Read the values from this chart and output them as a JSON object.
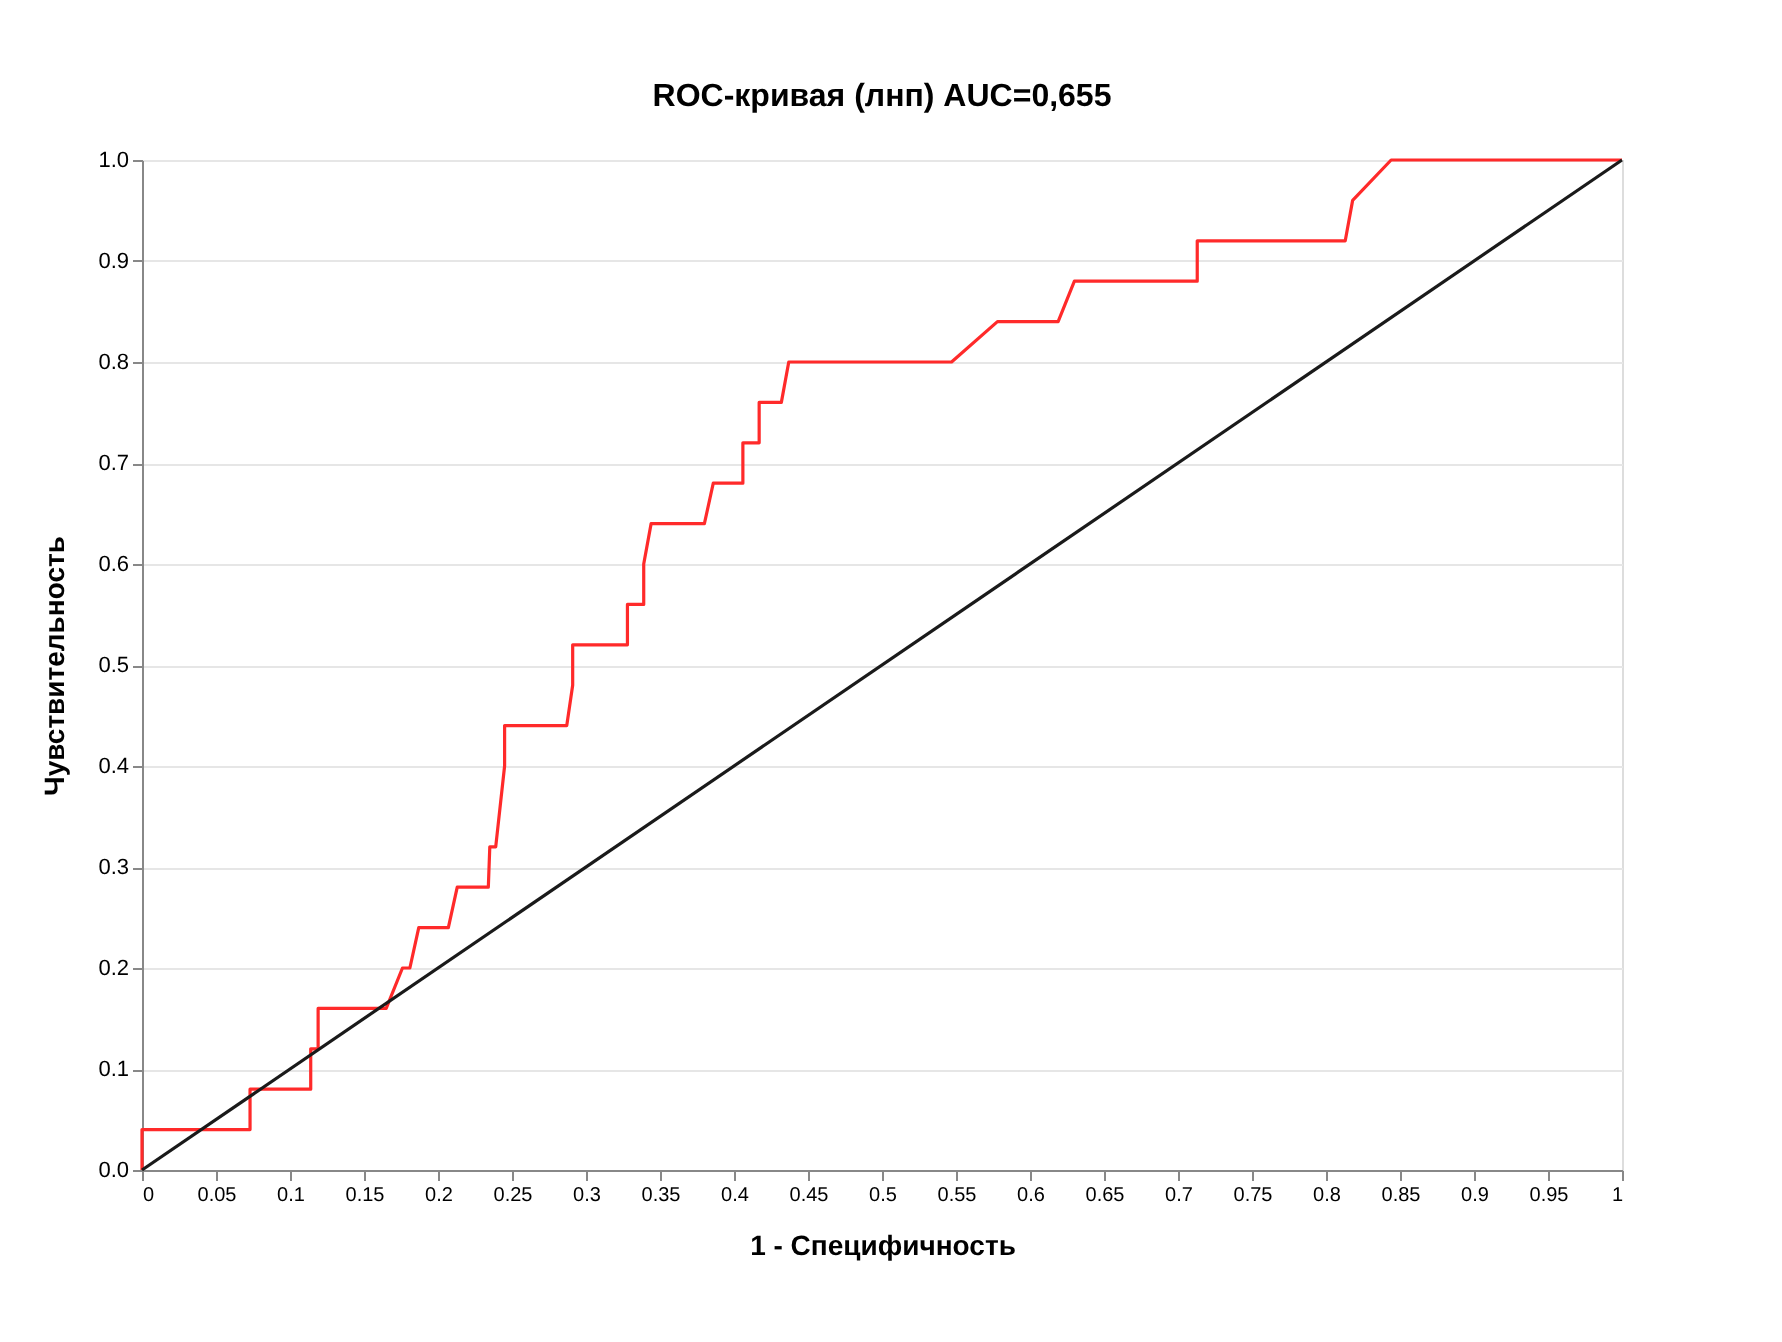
{
  "chart_data": {
    "type": "line",
    "title": "ROC-кривая (лнп) AUC=0,655",
    "xlabel": "1 - Специфичность",
    "ylabel": "Чувствительность",
    "xlim": [
      0,
      1
    ],
    "ylim": [
      0,
      1
    ],
    "xticks": [
      0,
      0.05,
      0.1,
      0.15,
      0.2,
      0.25,
      0.3,
      0.35,
      0.4,
      0.45,
      0.5,
      0.55,
      0.6,
      0.65,
      0.7,
      0.75,
      0.8,
      0.85,
      0.9,
      0.95,
      1
    ],
    "yticks": [
      {
        "value": 0,
        "label": "0.0"
      },
      0.1,
      0.2,
      0.3,
      0.4,
      0.5,
      0.6,
      0.7,
      0.8,
      0.9,
      {
        "value": 1,
        "label": "1.0"
      }
    ],
    "grid": "y",
    "marker": "none",
    "line_style": "solid",
    "series": [
      {
        "color": "#ff2a2a",
        "x": [
          0,
          0,
          0.073,
          0.073,
          0.114,
          0.114,
          0.119,
          0.119,
          0.165,
          0.176,
          0.181,
          0.187,
          0.207,
          0.213,
          0.234,
          0.235,
          0.239,
          0.245,
          0.245,
          0.287,
          0.291,
          0.291,
          0.328,
          0.328,
          0.339,
          0.339,
          0.344,
          0.38,
          0.386,
          0.406,
          0.406,
          0.417,
          0.417,
          0.432,
          0.437,
          0.547,
          0.578,
          0.619,
          0.63,
          0.713,
          0.713,
          0.813,
          0.818,
          0.844,
          1
        ],
        "values": [
          0,
          0.04,
          0.04,
          0.08,
          0.08,
          0.12,
          0.12,
          0.16,
          0.16,
          0.2,
          0.2,
          0.24,
          0.24,
          0.28,
          0.28,
          0.32,
          0.32,
          0.4,
          0.44,
          0.44,
          0.48,
          0.52,
          0.52,
          0.56,
          0.56,
          0.6,
          0.64,
          0.64,
          0.68,
          0.68,
          0.72,
          0.72,
          0.76,
          0.76,
          0.8,
          0.8,
          0.84,
          0.84,
          0.88,
          0.88,
          0.92,
          0.92,
          0.96,
          1,
          1
        ]
      },
      {
        "color": "#1a1a1a",
        "x": [
          0,
          1
        ],
        "values": [
          0,
          1
        ]
      }
    ]
  }
}
